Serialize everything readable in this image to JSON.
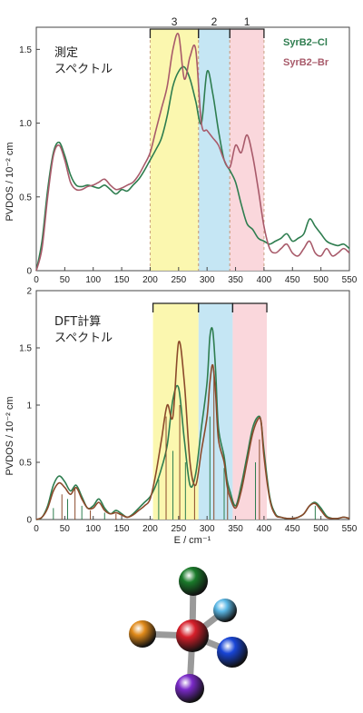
{
  "chart_data": [
    {
      "type": "line",
      "panel": "top",
      "annotation": [
        "測定",
        "スペクトル"
      ],
      "ylabel": "PVDOS / 10⁻² cm",
      "xlim": [
        0,
        550
      ],
      "ylim": [
        0,
        1.65
      ],
      "xticks": [
        0,
        50,
        100,
        150,
        200,
        250,
        300,
        350,
        400,
        450,
        500,
        550
      ],
      "yticks": [
        0,
        0.5,
        1.0,
        1.5
      ],
      "ytick_labels": [
        "0",
        "0.5",
        "1.0",
        "1.5"
      ],
      "regions": [
        {
          "label": "3",
          "x0": 200,
          "x1": 285,
          "color": "#fbf6a6"
        },
        {
          "label": "2",
          "x0": 285,
          "x1": 340,
          "color": "#bfe3f3"
        },
        {
          "label": "1",
          "x0": 340,
          "x1": 400,
          "color": "#f9d3d8"
        }
      ],
      "series": [
        {
          "name": "SyrB2–Cl",
          "color": "#2e7d4f",
          "x": [
            0,
            10,
            20,
            30,
            40,
            50,
            60,
            70,
            80,
            90,
            100,
            110,
            120,
            130,
            140,
            150,
            160,
            170,
            180,
            190,
            200,
            210,
            220,
            230,
            240,
            250,
            260,
            270,
            280,
            290,
            300,
            310,
            320,
            330,
            340,
            350,
            360,
            370,
            380,
            390,
            400,
            410,
            420,
            430,
            440,
            450,
            460,
            470,
            480,
            490,
            500,
            510,
            520,
            530,
            540,
            550
          ],
          "y": [
            0,
            0.2,
            0.55,
            0.8,
            0.87,
            0.78,
            0.65,
            0.58,
            0.57,
            0.58,
            0.57,
            0.56,
            0.58,
            0.55,
            0.52,
            0.55,
            0.54,
            0.58,
            0.62,
            0.68,
            0.75,
            0.82,
            0.9,
            1.05,
            1.25,
            1.35,
            1.38,
            1.3,
            1.15,
            1.0,
            1.35,
            1.2,
            0.95,
            0.75,
            0.68,
            0.6,
            0.45,
            0.32,
            0.28,
            0.22,
            0.2,
            0.18,
            0.2,
            0.22,
            0.25,
            0.2,
            0.22,
            0.25,
            0.35,
            0.3,
            0.25,
            0.2,
            0.18,
            0.17,
            0.18,
            0.15
          ]
        },
        {
          "name": "SyrB2–Br",
          "color": "#a85a6a",
          "x": [
            0,
            10,
            20,
            30,
            40,
            50,
            60,
            70,
            80,
            90,
            100,
            110,
            120,
            130,
            140,
            150,
            160,
            170,
            180,
            190,
            200,
            210,
            220,
            230,
            240,
            250,
            260,
            270,
            280,
            290,
            300,
            310,
            320,
            330,
            340,
            350,
            360,
            370,
            380,
            390,
            400,
            410,
            420,
            430,
            440,
            450,
            460,
            470,
            480,
            490,
            500,
            510,
            520,
            530,
            540,
            550
          ],
          "y": [
            0,
            0.15,
            0.5,
            0.78,
            0.85,
            0.75,
            0.6,
            0.55,
            0.55,
            0.57,
            0.58,
            0.6,
            0.62,
            0.58,
            0.55,
            0.56,
            0.58,
            0.6,
            0.65,
            0.72,
            0.8,
            0.95,
            1.1,
            1.25,
            1.5,
            1.6,
            1.3,
            1.45,
            1.5,
            1.0,
            0.95,
            0.9,
            0.85,
            0.75,
            0.7,
            0.85,
            0.8,
            0.92,
            0.78,
            0.55,
            0.3,
            0.15,
            0.12,
            0.15,
            0.18,
            0.12,
            0.1,
            0.15,
            0.2,
            0.12,
            0.1,
            0.15,
            0.1,
            0.12,
            0.15,
            0.12
          ]
        }
      ]
    },
    {
      "type": "line",
      "panel": "bottom",
      "annotation": [
        "DFT計算",
        "スペクトル"
      ],
      "ylabel": "PVDOS / 10⁻² cm",
      "xlabel": "E / cm⁻¹",
      "xlim": [
        0,
        550
      ],
      "ylim": [
        0,
        2
      ],
      "xticks": [
        0,
        50,
        100,
        150,
        200,
        250,
        300,
        350,
        400,
        450,
        500,
        550
      ],
      "yticks": [
        0,
        0.5,
        1,
        1.5,
        2
      ],
      "ytick_labels": [
        "0",
        "0.5",
        "1",
        "1.5",
        "2"
      ],
      "regions": [
        {
          "label": "",
          "x0": 205,
          "x1": 285,
          "color": "#fbf6a6"
        },
        {
          "label": "",
          "x0": 285,
          "x1": 345,
          "color": "#bfe3f3"
        },
        {
          "label": "",
          "x0": 345,
          "x1": 405,
          "color": "#f9d3d8"
        }
      ],
      "series": [
        {
          "name": "SyrB2–Cl",
          "color": "#2e7d4f",
          "x": [
            0,
            10,
            20,
            30,
            40,
            50,
            60,
            70,
            80,
            90,
            100,
            110,
            120,
            130,
            140,
            150,
            160,
            170,
            180,
            190,
            200,
            210,
            220,
            230,
            240,
            250,
            260,
            270,
            280,
            290,
            300,
            305,
            310,
            315,
            320,
            330,
            335,
            340,
            350,
            360,
            370,
            380,
            390,
            395,
            400,
            410,
            420,
            430,
            440,
            450,
            460,
            470,
            480,
            490,
            500,
            510,
            520,
            530,
            540,
            550
          ],
          "y": [
            0,
            0.02,
            0.12,
            0.3,
            0.38,
            0.33,
            0.25,
            0.3,
            0.2,
            0.1,
            0.12,
            0.18,
            0.1,
            0.05,
            0.08,
            0.05,
            0.02,
            0.05,
            0.1,
            0.15,
            0.2,
            0.3,
            0.45,
            0.65,
            1.05,
            1.15,
            0.7,
            0.3,
            0.4,
            0.8,
            1.2,
            1.6,
            1.65,
            1.3,
            0.8,
            0.55,
            0.35,
            0.25,
            0.12,
            0.3,
            0.55,
            0.8,
            0.9,
            0.85,
            0.6,
            0.2,
            0.05,
            0.02,
            0.01,
            0.01,
            0.02,
            0.05,
            0.12,
            0.15,
            0.1,
            0.03,
            0.01,
            0.01,
            0.02,
            0.01
          ]
        },
        {
          "name": "SyrB2–Br",
          "color": "#8b4a2b",
          "x": [
            0,
            10,
            20,
            30,
            40,
            50,
            60,
            70,
            80,
            90,
            100,
            110,
            120,
            130,
            140,
            150,
            160,
            170,
            180,
            190,
            200,
            210,
            220,
            230,
            240,
            250,
            260,
            270,
            280,
            290,
            300,
            305,
            310,
            315,
            320,
            330,
            335,
            340,
            350,
            360,
            370,
            380,
            390,
            395,
            400,
            410,
            420,
            430,
            440,
            450,
            460,
            470,
            480,
            490,
            500,
            510,
            520,
            530,
            540,
            550
          ],
          "y": [
            0,
            0.02,
            0.1,
            0.25,
            0.32,
            0.28,
            0.22,
            0.28,
            0.18,
            0.1,
            0.1,
            0.15,
            0.08,
            0.05,
            0.06,
            0.04,
            0.02,
            0.04,
            0.08,
            0.12,
            0.18,
            0.4,
            0.7,
            1.0,
            0.9,
            1.55,
            1.2,
            0.5,
            0.3,
            0.6,
            0.9,
            1.2,
            1.35,
            1.1,
            0.7,
            0.5,
            0.3,
            0.2,
            0.1,
            0.25,
            0.5,
            0.75,
            0.88,
            0.85,
            0.55,
            0.18,
            0.04,
            0.02,
            0.01,
            0.01,
            0.02,
            0.05,
            0.12,
            0.14,
            0.08,
            0.02,
            0.01,
            0.01,
            0.02,
            0.01
          ]
        }
      ]
    }
  ],
  "legend": [
    {
      "label": "SyrB2–Cl",
      "color": "#2e7d4f"
    },
    {
      "label": "SyrB2–Br",
      "color": "#a85a6a"
    }
  ],
  "molecule": {
    "atoms": [
      {
        "name": "center",
        "color": "#d61f2a"
      },
      {
        "name": "top",
        "color": "#1a7a2a"
      },
      {
        "name": "upper-right",
        "color": "#5bb8e6"
      },
      {
        "name": "left",
        "color": "#e08a1a"
      },
      {
        "name": "right",
        "color": "#1845d6"
      },
      {
        "name": "bottom",
        "color": "#7a2ac8"
      }
    ]
  }
}
